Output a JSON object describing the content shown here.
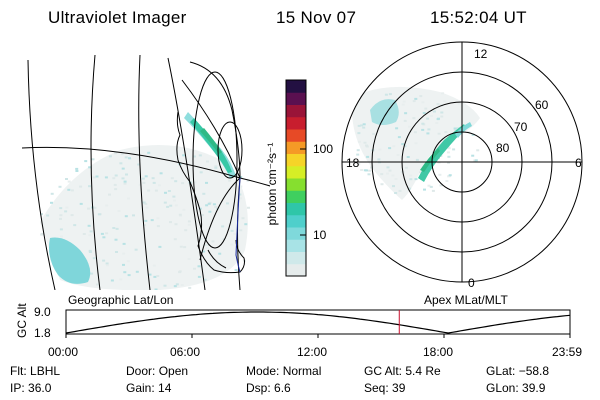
{
  "header": {
    "instrument": "Ultraviolet Imager",
    "date": "15 Nov 07",
    "time": "15:52:04 UT"
  },
  "colorbar": {
    "label": "photon cm⁻²s⁻¹",
    "ticks": [
      {
        "label": "100",
        "value": 100
      },
      {
        "label": "10",
        "value": 10
      }
    ],
    "colors": [
      "#e6ecec",
      "#cfe9ea",
      "#a8e3e6",
      "#7fd9db",
      "#4fcfcb",
      "#2fc6a8",
      "#3fcf5f",
      "#86df2f",
      "#d6ee26",
      "#f6d428",
      "#f59a26",
      "#e74a26",
      "#c81e2e",
      "#9a1438",
      "#5a1050",
      "#231042"
    ]
  },
  "geo_panel": {
    "label": "Geographic Lat/Lon"
  },
  "polar_panel": {
    "label": "Apex MLat/MLT",
    "lat_labels": [
      "80",
      "70",
      "60"
    ],
    "mlt_labels": {
      "top": "12",
      "left": "18",
      "right": "6",
      "bottom": "0"
    }
  },
  "timeline": {
    "ylabel": "GC Alt",
    "y_ticks": [
      "9.0",
      "1.8"
    ],
    "x_ticks": [
      "00:00",
      "06:00",
      "12:00",
      "18:00",
      "23:59"
    ],
    "current_marker_hours": 15.87,
    "marker_color": "#c8102e"
  },
  "status": {
    "row1": [
      {
        "key": "Flt:",
        "value": "LBHL"
      },
      {
        "key": "Door:",
        "value": "Open"
      },
      {
        "key": "Mode:",
        "value": "Normal"
      },
      {
        "key": "GC Alt:",
        "value": "5.4 Re"
      },
      {
        "key": "GLat:",
        "value": "−58.8"
      }
    ],
    "row2": [
      {
        "key": "IP:",
        "value": "36.0"
      },
      {
        "key": "Gain:",
        "value": "14"
      },
      {
        "key": "Dsp:",
        "value": "6.6"
      },
      {
        "key": "Seq:",
        "value": "39"
      },
      {
        "key": "GLon:",
        "value": "39.9"
      }
    ]
  }
}
